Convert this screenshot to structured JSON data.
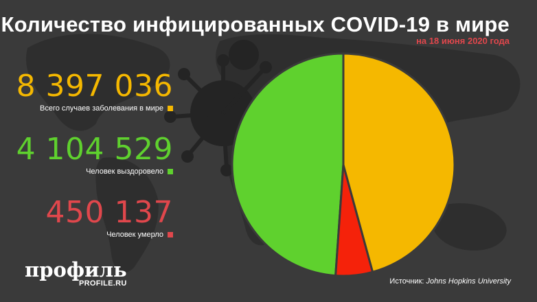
{
  "title": "Количество инфицированных COVID-19 в мире",
  "subtitle": "на 18 июня 2020 года",
  "stats": [
    {
      "value": "8 397 036",
      "label": "Всего случаев заболевания в мире",
      "color": "#f5b800"
    },
    {
      "value": "4 104 529",
      "label": "Человек выздоровело",
      "color": "#5fd12e"
    },
    {
      "value": "450 137",
      "label": "Человек умерло",
      "color": "#e0474c"
    }
  ],
  "logo": {
    "main": "профиль",
    "sub": "PROFILE.RU"
  },
  "source": {
    "prefix": "Источник:",
    "name": "Johns Hopkins University"
  },
  "chart_data": {
    "type": "pie",
    "slices": [
      {
        "label": "Человек выздоровело",
        "value": 4104529,
        "color": "#5fd12e"
      },
      {
        "label": "Человек умерло",
        "value": 450137,
        "color": "#f5220a"
      },
      {
        "label": "Всего случаев заболевания в мире",
        "value": 3842370,
        "color": "#f5b800"
      }
    ],
    "title": "Количество инфицированных COVID-19 в мире"
  }
}
